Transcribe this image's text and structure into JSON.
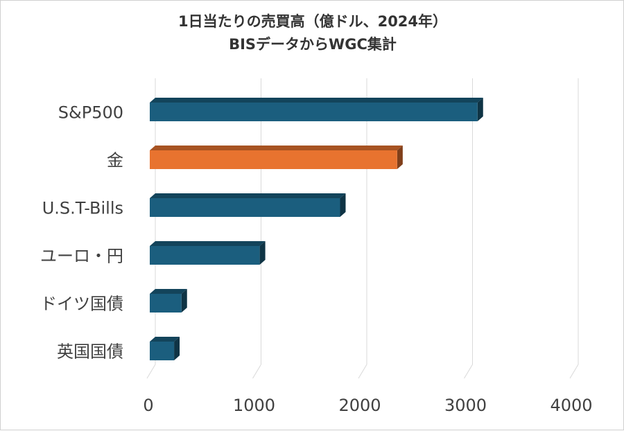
{
  "chart_data": {
    "type": "bar",
    "orientation": "horizontal",
    "style": "3d",
    "title_lines": [
      "1日当たりの売買高（億ドル、2024年）",
      "BISデータからWGC集計"
    ],
    "categories": [
      "S&P500",
      "金",
      "U.S.T-Bills",
      "ユーロ・円",
      "ドイツ国債",
      "英国国債"
    ],
    "values": [
      3100,
      2340,
      1800,
      1040,
      300,
      230
    ],
    "bar_colors": [
      "#1B5E7E",
      "#E8732F",
      "#1B5E7E",
      "#1B5E7E",
      "#1B5E7E",
      "#1B5E7E"
    ],
    "xlim": [
      0,
      4000
    ],
    "x_ticks": [
      "0",
      "1000",
      "2000",
      "3000",
      "4000"
    ],
    "xlabel": "",
    "ylabel": "",
    "grid": true,
    "legend": "none"
  }
}
